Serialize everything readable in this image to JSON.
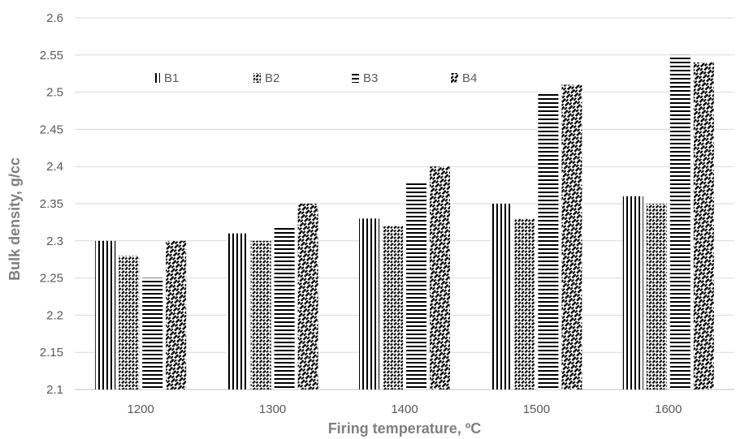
{
  "chart_data": {
    "type": "bar",
    "title": "",
    "xlabel": "Firing temperature, ºC",
    "ylabel": "Bulk density, g/cc",
    "categories": [
      "1200",
      "1300",
      "1400",
      "1500",
      "1600"
    ],
    "series": [
      {
        "name": "B1",
        "values": [
          2.3,
          2.31,
          2.33,
          2.35,
          2.36
        ],
        "pattern": "vertical-lines"
      },
      {
        "name": "B2",
        "values": [
          2.28,
          2.3,
          2.32,
          2.33,
          2.35
        ],
        "pattern": "dense-diagonal-dash"
      },
      {
        "name": "B3",
        "values": [
          2.25,
          2.32,
          2.38,
          2.5,
          2.55
        ],
        "pattern": "horizontal-lines"
      },
      {
        "name": "B4",
        "values": [
          2.3,
          2.35,
          2.4,
          2.51,
          2.54
        ],
        "pattern": "wide-diagonal-dash"
      }
    ],
    "ylim": [
      2.1,
      2.6
    ],
    "yticks": [
      "2.1",
      "2.15",
      "2.2",
      "2.25",
      "2.3",
      "2.35",
      "2.4",
      "2.45",
      "2.5",
      "2.55",
      "2.6"
    ],
    "grid": true,
    "legend_position": "top-left inside plot",
    "colors": {
      "ink": "#000000",
      "grid": "#d9d9d9",
      "tick_text": "#595959",
      "axis_title": "#7f7f7f"
    }
  }
}
